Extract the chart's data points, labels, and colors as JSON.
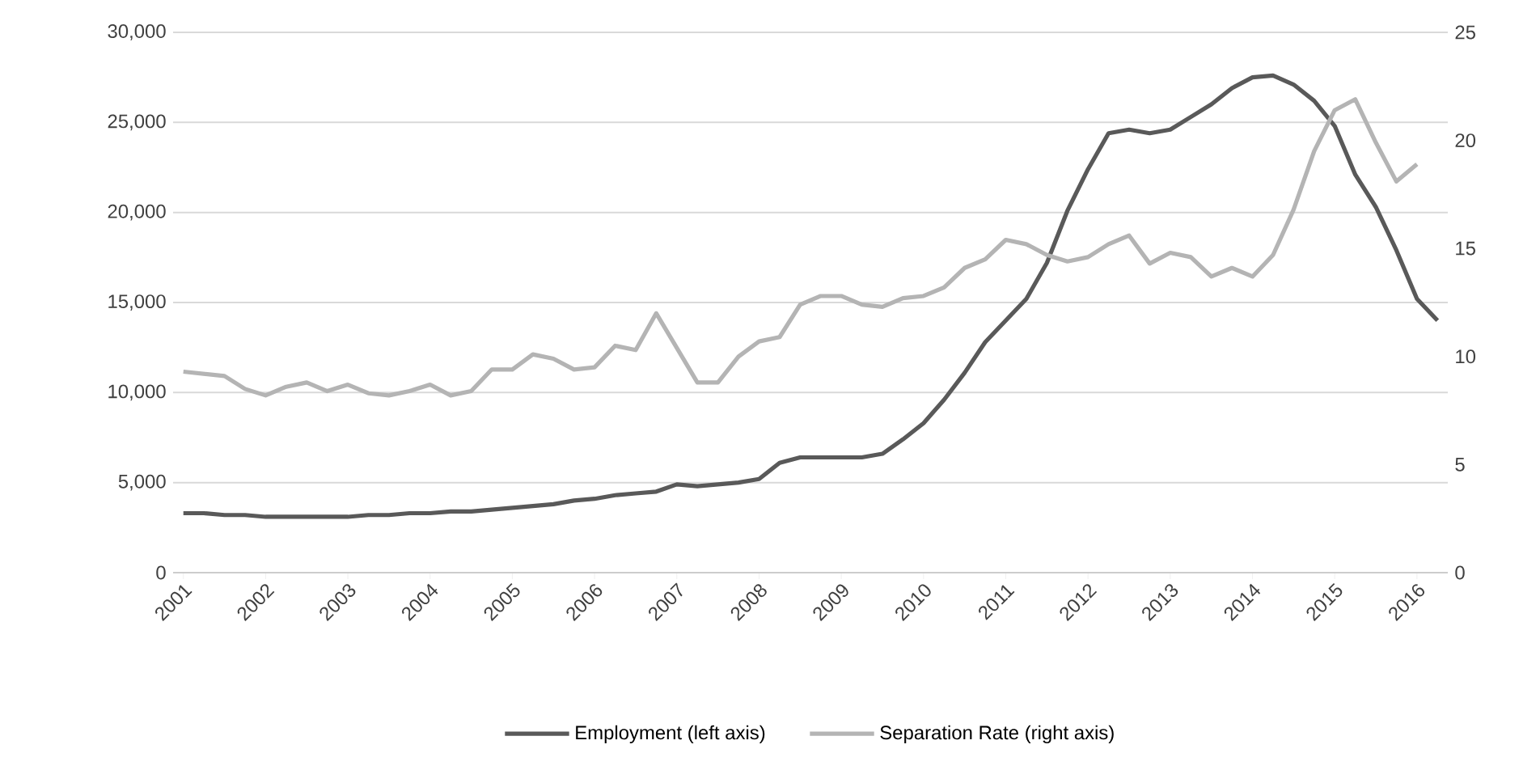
{
  "chart_data": {
    "type": "line",
    "categories": [
      "2001",
      null,
      null,
      null,
      "2002",
      null,
      null,
      null,
      "2003",
      null,
      null,
      null,
      "2004",
      null,
      null,
      null,
      "2005",
      null,
      null,
      null,
      "2006",
      null,
      null,
      null,
      "2007",
      null,
      null,
      null,
      "2008",
      null,
      null,
      null,
      "2009",
      null,
      null,
      null,
      "2010",
      null,
      null,
      null,
      "2011",
      null,
      null,
      null,
      "2012",
      null,
      null,
      null,
      "2013",
      null,
      null,
      null,
      "2014",
      null,
      null,
      null,
      "2015",
      null,
      null,
      null,
      "2016",
      null
    ],
    "series": [
      {
        "name": "Employment (left axis)",
        "color": "#595959",
        "values": [
          3300,
          3300,
          3200,
          3200,
          3100,
          3100,
          3100,
          3100,
          3100,
          3200,
          3200,
          3300,
          3300,
          3400,
          3400,
          3500,
          3600,
          3700,
          3800,
          4000,
          4100,
          4300,
          4400,
          4500,
          4900,
          4800,
          4900,
          5000,
          5200,
          6100,
          6400,
          6400,
          6400,
          6400,
          6600,
          7400,
          8300,
          9600,
          11100,
          12800,
          14000,
          15200,
          17200,
          20100,
          22400,
          24400,
          24600,
          24400,
          24600,
          25300,
          26000,
          26900,
          27500,
          27600,
          27100,
          26200,
          24800,
          22100,
          20300,
          17900,
          15200,
          14000
        ]
      },
      {
        "name": "Separation Rate (right axis)",
        "color": "#b4b4b4",
        "axis": "y2",
        "values": [
          9.3,
          9.2,
          9.1,
          8.5,
          8.2,
          8.6,
          8.8,
          8.4,
          8.7,
          8.3,
          8.2,
          8.4,
          8.7,
          8.2,
          8.4,
          9.4,
          9.4,
          10.1,
          9.9,
          9.4,
          9.5,
          10.5,
          10.3,
          12.0,
          10.4,
          8.8,
          8.8,
          10.0,
          10.7,
          10.9,
          12.4,
          12.8,
          12.8,
          12.4,
          12.3,
          12.7,
          12.8,
          13.2,
          14.1,
          14.5,
          15.4,
          15.2,
          14.7,
          14.4,
          14.6,
          15.2,
          15.6,
          14.3,
          14.8,
          14.6,
          13.7,
          14.1,
          13.7,
          14.7,
          16.8,
          19.5,
          21.4,
          21.9,
          19.9,
          18.1,
          18.9,
          null
        ]
      }
    ],
    "ylim": [
      0,
      30000
    ],
    "yticks": [
      0,
      {
        "value": 5000,
        "label": "5,000"
      },
      {
        "value": 10000,
        "label": "10,000"
      },
      {
        "value": 15000,
        "label": "15,000"
      },
      {
        "value": 20000,
        "label": "20,000"
      },
      {
        "value": 25000,
        "label": "25,000"
      },
      {
        "value": 30000,
        "label": "30,000"
      }
    ],
    "y2lim": [
      0,
      25
    ],
    "y2ticks": [
      0,
      5,
      10,
      15,
      20,
      25
    ],
    "grid": "y",
    "legend": "bottom",
    "marker": "none",
    "line_style": "solid"
  }
}
